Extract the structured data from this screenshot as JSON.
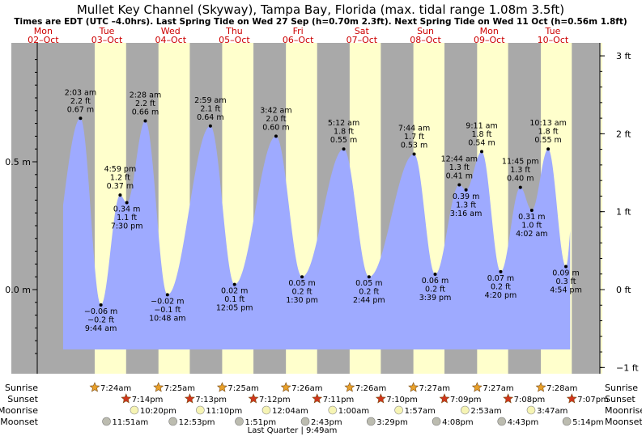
{
  "chart_data": {
    "type": "area",
    "title": "Mullet Key Channel (Skyway), Tampa Bay, Florida (max. tidal range 1.08m 3.5ft)",
    "subtitle": "Times are EDT (UTC –4.0hrs). Last Spring Tide on Wed 27 Sep (h=0.70m 2.3ft). Next Spring Tide on Wed 11 Oct (h=0.56m 1.8ft)",
    "days": [
      {
        "name": "Mon",
        "date": "02–Oct"
      },
      {
        "name": "Tue",
        "date": "03–Oct"
      },
      {
        "name": "Wed",
        "date": "04–Oct"
      },
      {
        "name": "Thu",
        "date": "05–Oct"
      },
      {
        "name": "Fri",
        "date": "06–Oct"
      },
      {
        "name": "Sat",
        "date": "07–Oct"
      },
      {
        "name": "Sun",
        "date": "08–Oct"
      },
      {
        "name": "Mon",
        "date": "09–Oct"
      },
      {
        "name": "Tue",
        "date": "10–Oct"
      }
    ],
    "y_left_ticks": [
      {
        "v": 0.5,
        "label": "0.5 m"
      },
      {
        "v": 0.0,
        "label": "0.0 m"
      }
    ],
    "y_right_ticks": [
      {
        "v": 0.9144,
        "label": "3 ft"
      },
      {
        "v": 0.6096,
        "label": "2 ft"
      },
      {
        "v": 0.3048,
        "label": "1 ft"
      },
      {
        "v": 0.0,
        "label": "0 ft"
      },
      {
        "v": -0.3048,
        "label": "−1 ft"
      }
    ],
    "extremes": [
      {
        "type": "high",
        "day": 1,
        "time": "2:03 am",
        "ft": "2.2 ft",
        "m": "0.67 m",
        "value": 0.67
      },
      {
        "type": "low",
        "day": 1,
        "time": "9:44 am",
        "ft": "−0.2 ft",
        "m": "−0.06 m",
        "value": -0.06
      },
      {
        "type": "high",
        "day": 1,
        "time": "4:59 pm",
        "ft": "1.2 ft",
        "m": "0.37 m",
        "value": 0.37
      },
      {
        "type": "low",
        "day": 1,
        "time": "7:30 pm",
        "ft": "1.1 ft",
        "m": "0.34 m",
        "value": 0.34
      },
      {
        "type": "high",
        "day": 2,
        "time": "2:28 am",
        "ft": "2.2 ft",
        "m": "0.66 m",
        "value": 0.66
      },
      {
        "type": "low",
        "day": 2,
        "time": "10:48 am",
        "ft": "−0.1 ft",
        "m": "−0.02 m",
        "value": -0.02
      },
      {
        "type": "high",
        "day": 3,
        "time": "2:59 am",
        "ft": "2.1 ft",
        "m": "0.64 m",
        "value": 0.64
      },
      {
        "type": "low",
        "day": 3,
        "time": "12:05 pm",
        "ft": "0.1 ft",
        "m": "0.02 m",
        "value": 0.02
      },
      {
        "type": "high",
        "day": 4,
        "time": "3:42 am",
        "ft": "2.0 ft",
        "m": "0.60 m",
        "value": 0.6
      },
      {
        "type": "low",
        "day": 4,
        "time": "1:30 pm",
        "ft": "0.2 ft",
        "m": "0.05 m",
        "value": 0.05
      },
      {
        "type": "high",
        "day": 5,
        "time": "5:12 am",
        "ft": "1.8 ft",
        "m": "0.55 m",
        "value": 0.55
      },
      {
        "type": "low",
        "day": 5,
        "time": "2:44 pm",
        "ft": "0.2 ft",
        "m": "0.05 m",
        "value": 0.05
      },
      {
        "type": "high",
        "day": 6,
        "time": "7:44 am",
        "ft": "1.7 ft",
        "m": "0.53 m",
        "value": 0.53
      },
      {
        "type": "low",
        "day": 6,
        "time": "3:39 pm",
        "ft": "0.2 ft",
        "m": "0.06 m",
        "value": 0.06
      },
      {
        "type": "high",
        "day": 7,
        "time": "12:44 am",
        "ft": "1.3 ft",
        "m": "0.41 m",
        "value": 0.41
      },
      {
        "type": "low",
        "day": 7,
        "time": "3:16 am",
        "ft": "1.3 ft",
        "m": "0.39 m",
        "value": 0.39
      },
      {
        "type": "high",
        "day": 7,
        "time": "9:11 am",
        "ft": "1.8 ft",
        "m": "0.54 m",
        "value": 0.54
      },
      {
        "type": "low",
        "day": 7,
        "time": "4:20 pm",
        "ft": "0.2 ft",
        "m": "0.07 m",
        "value": 0.07
      },
      {
        "type": "high",
        "day": 7,
        "time": "11:45 pm",
        "ft": "1.3 ft",
        "m": "0.40 m",
        "value": 0.4
      },
      {
        "type": "low",
        "day": 8,
        "time": "4:02 am",
        "ft": "1.0 ft",
        "m": "0.31 m",
        "value": 0.31
      },
      {
        "type": "high",
        "day": 8,
        "time": "10:13 am",
        "ft": "1.8 ft",
        "m": "0.55 m",
        "value": 0.55
      },
      {
        "type": "low",
        "day": 8,
        "time": "4:54 pm",
        "ft": "0.3 ft",
        "m": "0.09 m",
        "value": 0.09
      }
    ],
    "sun": [
      {
        "day": 1,
        "sunrise": "7:24am",
        "sunset": "7:14pm"
      },
      {
        "day": 2,
        "sunrise": "7:25am",
        "sunset": "7:13pm"
      },
      {
        "day": 3,
        "sunrise": "7:25am",
        "sunset": "7:12pm"
      },
      {
        "day": 4,
        "sunrise": "7:26am",
        "sunset": "7:11pm"
      },
      {
        "day": 5,
        "sunrise": "7:26am",
        "sunset": "7:10pm"
      },
      {
        "day": 6,
        "sunrise": "7:27am",
        "sunset": "7:09pm"
      },
      {
        "day": 7,
        "sunrise": "7:27am",
        "sunset": "7:08pm"
      },
      {
        "day": 8,
        "sunrise": "7:28am",
        "sunset": "7:07pm"
      }
    ],
    "moonrise": [
      {
        "day": 1,
        "time": "10:20pm"
      },
      {
        "day": 2,
        "time": "11:10pm"
      },
      {
        "day": 4,
        "time": "12:04am"
      },
      {
        "day": 5,
        "time": "1:00am"
      },
      {
        "day": 6,
        "time": "1:57am"
      },
      {
        "day": 7,
        "time": "2:53am"
      },
      {
        "day": 8,
        "time": "3:47am"
      }
    ],
    "moonset": [
      {
        "day": 1,
        "time": "11:51am"
      },
      {
        "day": 2,
        "time": "12:53pm"
      },
      {
        "day": 3,
        "time": "1:51pm"
      },
      {
        "day": 4,
        "time": "2:43pm"
      },
      {
        "day": 5,
        "time": "3:29pm"
      },
      {
        "day": 6,
        "time": "4:08pm"
      },
      {
        "day": 7,
        "time": "4:43pm"
      },
      {
        "day": 8,
        "time": "5:14pm"
      }
    ],
    "row_labels": {
      "sunrise": "Sunrise",
      "sunset": "Sunset",
      "moonrise": "Moonrise",
      "moonset": "Moonset"
    },
    "moon_phase": {
      "day": 4,
      "label": "Last Quarter | 9:49am"
    },
    "colors": {
      "night": "#a9a9a9",
      "day": "#ffffcc",
      "tide_fill": "#9eaaff",
      "day_label": "#cc0000",
      "sunrise_star": "#e8a02a",
      "sunset_star": "#d0351c",
      "moon_fill": "#f6f4b4",
      "moonset_fill": "#bcbcb0"
    }
  }
}
